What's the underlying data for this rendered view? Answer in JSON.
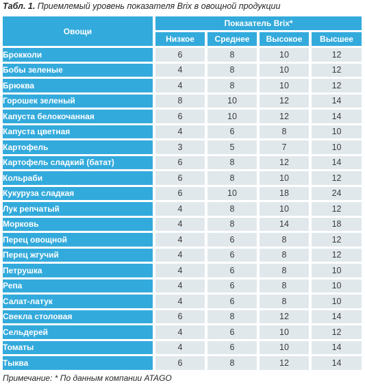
{
  "caption": {
    "label": "Табл. 1.",
    "text": "Приемлемый уровень показателя Brix в овощной продукции"
  },
  "table": {
    "header": {
      "vegetables": "Овощи",
      "brix_group": "Показатель Brix*",
      "levels": [
        "Низкое",
        "Среднее",
        "Высокое",
        "Высшее"
      ]
    },
    "rows": [
      {
        "name": "Брокколи",
        "values": [
          6,
          8,
          10,
          12
        ]
      },
      {
        "name": "Бобы зеленые",
        "values": [
          4,
          8,
          10,
          12
        ]
      },
      {
        "name": "Брюква",
        "values": [
          4,
          8,
          10,
          12
        ]
      },
      {
        "name": "Горошек зеленый",
        "values": [
          8,
          10,
          12,
          14
        ]
      },
      {
        "name": "Капуста белокочанная",
        "values": [
          6,
          10,
          12,
          14
        ]
      },
      {
        "name": "Капуста цветная",
        "values": [
          4,
          6,
          8,
          10
        ]
      },
      {
        "name": "Картофель",
        "values": [
          3,
          5,
          7,
          10
        ]
      },
      {
        "name": "Картофель сладкий (батат)",
        "values": [
          6,
          8,
          12,
          14
        ]
      },
      {
        "name": "Кольраби",
        "values": [
          6,
          8,
          10,
          12
        ]
      },
      {
        "name": "Кукуруза сладкая",
        "values": [
          6,
          10,
          18,
          24
        ]
      },
      {
        "name": "Лук репчатый",
        "values": [
          4,
          8,
          10,
          12
        ]
      },
      {
        "name": "Морковь",
        "values": [
          4,
          8,
          14,
          18
        ]
      },
      {
        "name": "Перец овощной",
        "values": [
          4,
          6,
          8,
          12
        ]
      },
      {
        "name": "Перец жгучий",
        "values": [
          4,
          6,
          8,
          12
        ]
      },
      {
        "name": "Петрушка",
        "values": [
          4,
          6,
          8,
          10
        ]
      },
      {
        "name": "Репа",
        "values": [
          4,
          6,
          8,
          10
        ]
      },
      {
        "name": "Салат-латук",
        "values": [
          4,
          6,
          8,
          10
        ]
      },
      {
        "name": "Свекла столовая",
        "values": [
          6,
          8,
          12,
          14
        ]
      },
      {
        "name": "Сельдерей",
        "values": [
          4,
          6,
          10,
          12
        ]
      },
      {
        "name": "Томаты",
        "values": [
          4,
          6,
          10,
          14
        ]
      },
      {
        "name": "Тыква",
        "values": [
          6,
          8,
          12,
          14
        ]
      }
    ]
  },
  "footnote": {
    "label": "Примечание:",
    "text": "* По данным компании ATAGO"
  },
  "colors": {
    "header_bg": "#33aadc",
    "cell_bg": "#e1e8ec",
    "header_text": "#ffffff",
    "value_text": "#3a3a3a"
  }
}
